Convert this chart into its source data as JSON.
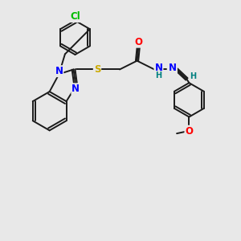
{
  "bg_color": "#e8e8e8",
  "bond_color": "#1a1a1a",
  "atom_colors": {
    "N": "#0000ff",
    "O": "#ff0000",
    "S": "#ccaa00",
    "Cl": "#00bb00",
    "H": "#008080",
    "C": "#1a1a1a"
  },
  "font_size_atom": 8.5,
  "font_size_small": 7.0,
  "lw": 1.4
}
